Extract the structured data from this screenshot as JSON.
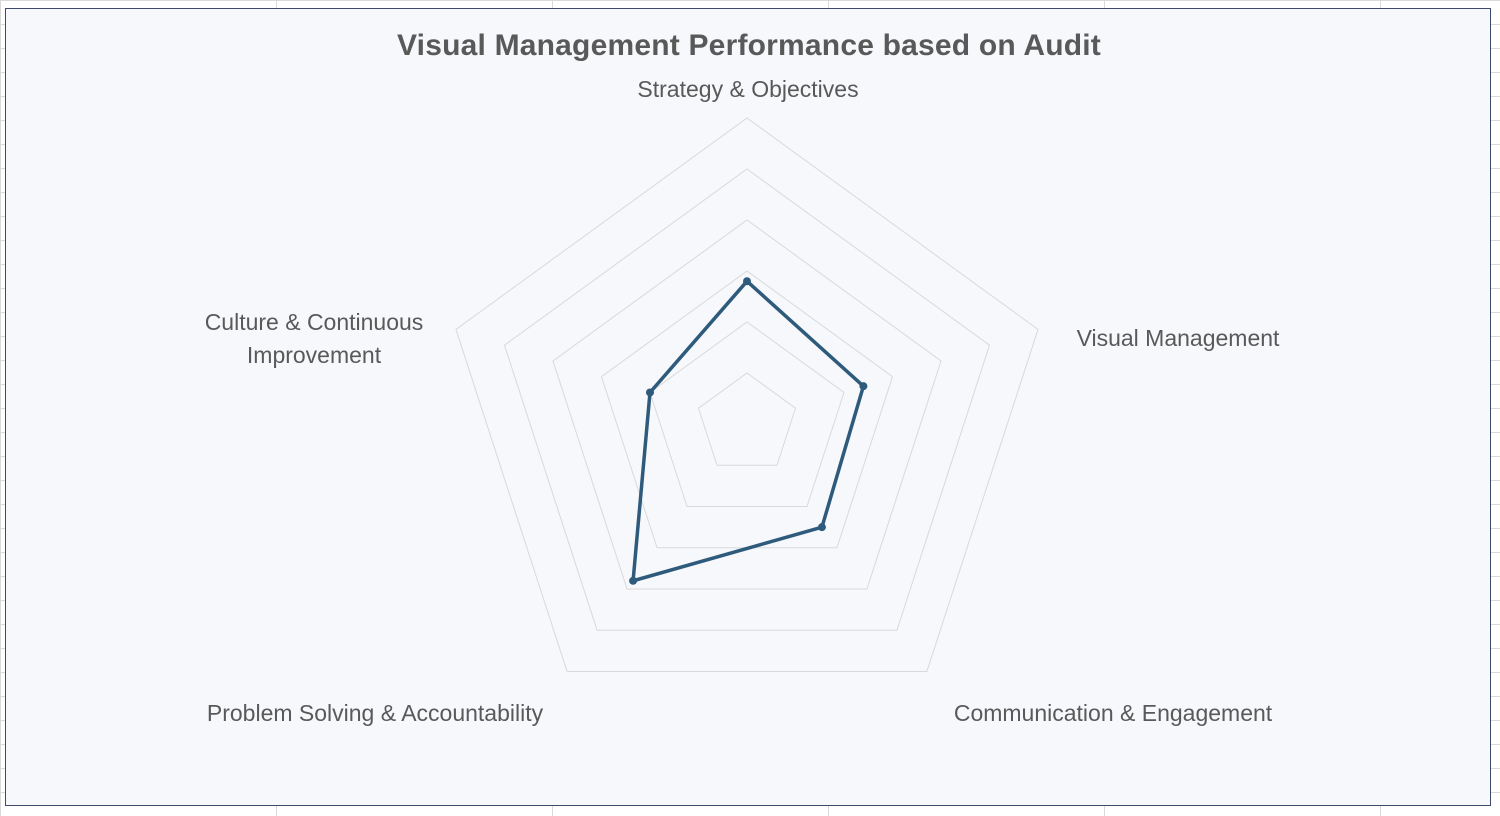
{
  "chart_data": {
    "type": "radar",
    "title": "Visual Management Performance based on Audit",
    "categories": [
      "Strategy & Objectives",
      "Visual Management",
      "Communication & Engagement",
      "Problem Solving & Accountability",
      "Culture & Continuous Improvement"
    ],
    "category_lines": [
      [
        "Strategy & Objectives"
      ],
      [
        "Visual Management"
      ],
      [
        "Communication & Engagement"
      ],
      [
        "Problem Solving & Accountability"
      ],
      [
        "Culture & Continuous",
        "Improvement"
      ]
    ],
    "series": [
      {
        "values": [
          2.8,
          2.4,
          2.5,
          3.8,
          2.0
        ]
      }
    ],
    "rlim": [
      0,
      6
    ],
    "ring_count": 6,
    "grid": true,
    "legend": "none",
    "colors": {
      "series": "#2e5a7c",
      "grid": "#d9d9d9",
      "text": "#595959",
      "plot_background": "#f6f8fb",
      "border": "#3d4a6b"
    }
  }
}
